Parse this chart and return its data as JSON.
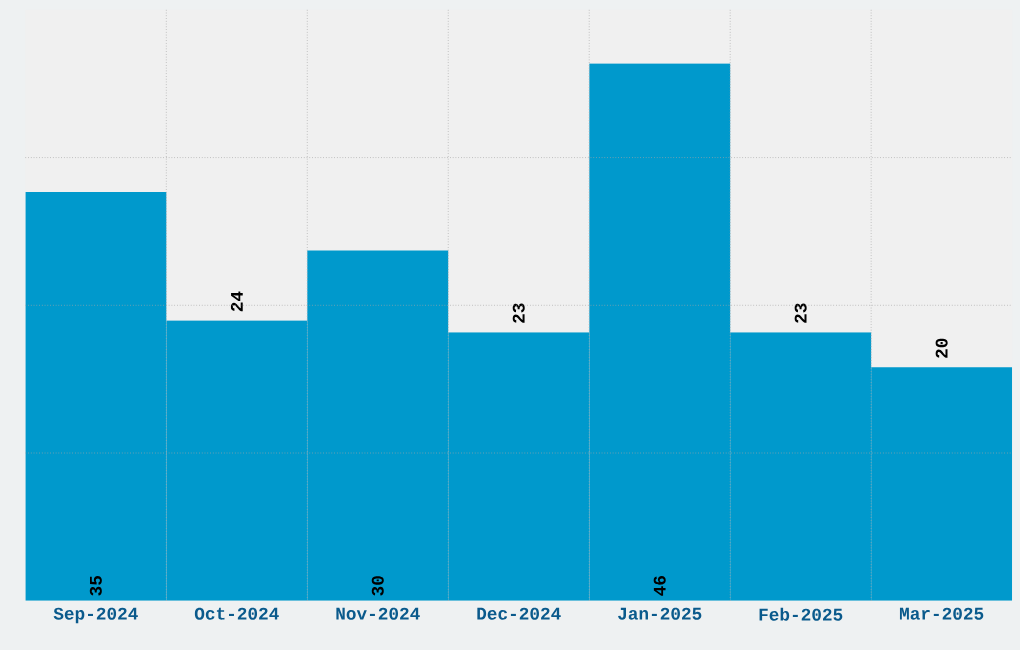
{
  "chart_data": {
    "type": "bar",
    "categories": [
      "Sep-2024",
      "Oct-2024",
      "Nov-2024",
      "Dec-2024",
      "Jan-2025",
      "Feb-2025",
      "Mar-2025"
    ],
    "values": [
      35,
      24,
      30,
      23,
      46,
      23,
      20
    ],
    "color": "#0099cc",
    "relative": false,
    "data_labels": true,
    "grid": true,
    "tick_labels": "x",
    "ylim": [
      0,
      50.6
    ],
    "yticks": [
      {
        "value": 12.65,
        "label": null
      },
      {
        "value": 25.3,
        "label": null
      },
      {
        "value": 37.95,
        "label": null
      }
    ]
  }
}
